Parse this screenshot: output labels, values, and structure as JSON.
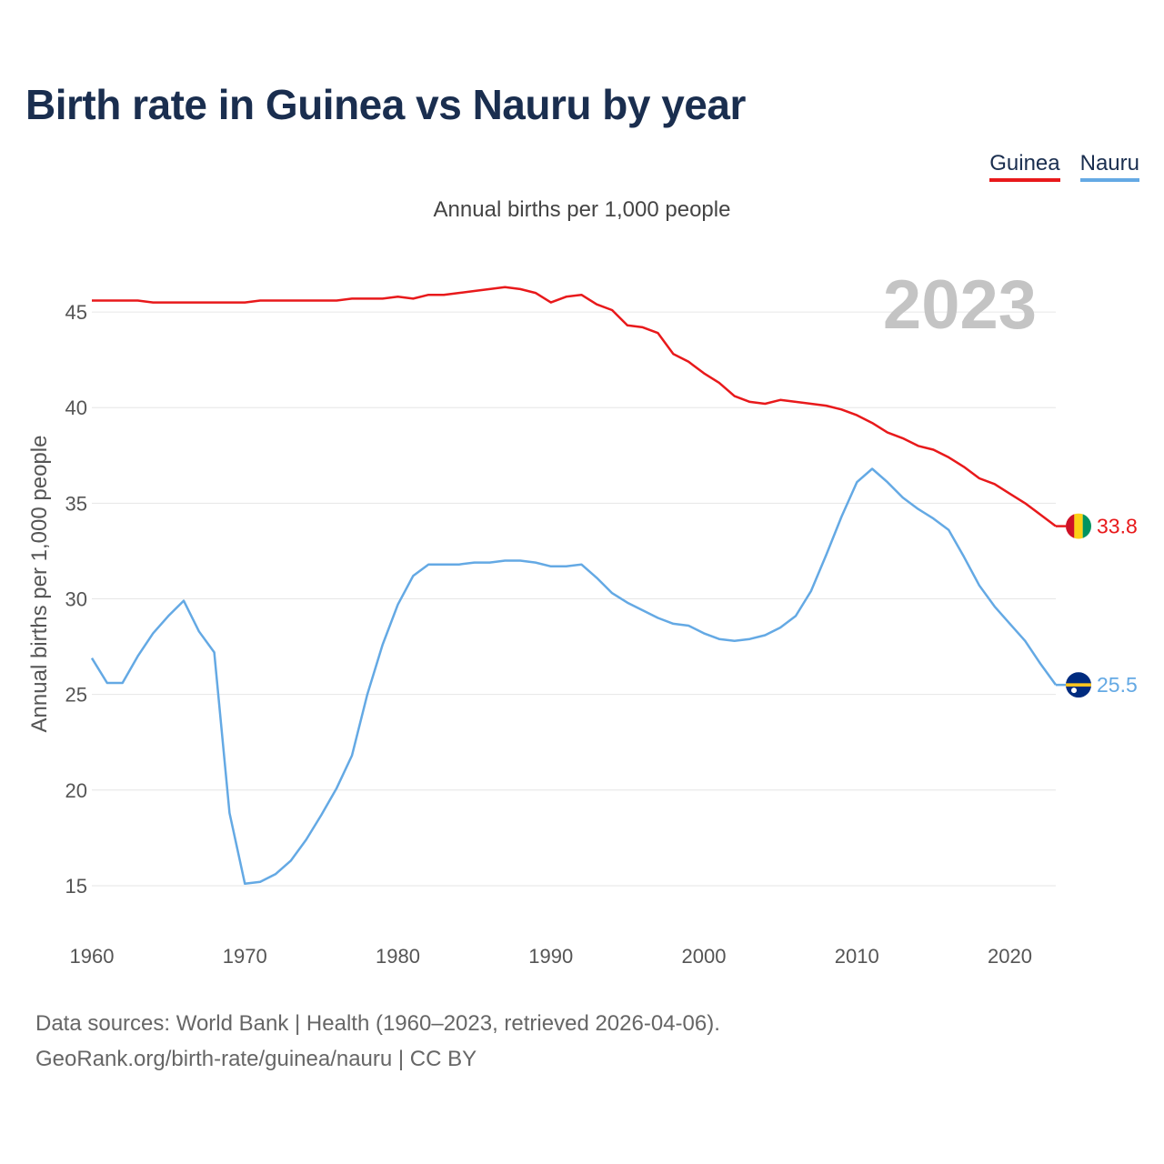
{
  "title": "Birth rate in Guinea vs Nauru by year",
  "subtitle": "Annual births per 1,000 people",
  "legend": {
    "guinea": "Guinea",
    "nauru": "Nauru"
  },
  "colors": {
    "guinea": "#e8191b",
    "nauru": "#64a9e4",
    "title": "#1a2e4f",
    "year_watermark": "#c4c4c4"
  },
  "footer": {
    "line1": "Data sources: World Bank | Health (1960–2023, retrieved 2026-04-06).",
    "line2": "GeoRank.org/birth-rate/guinea/nauru | CC BY"
  },
  "chart_data": {
    "type": "line",
    "title": "Birth rate in Guinea vs Nauru by year",
    "ylabel": "Annual births per 1,000 people",
    "xlabel": "",
    "year_label": "2023",
    "xlim": [
      1960,
      2023
    ],
    "ylim": [
      13,
      48
    ],
    "x_ticks": [
      1960,
      1970,
      1980,
      1990,
      2000,
      2010,
      2020
    ],
    "y_ticks": [
      15,
      20,
      25,
      30,
      35,
      40,
      45
    ],
    "grid": true,
    "x": [
      1960,
      1961,
      1962,
      1963,
      1964,
      1965,
      1966,
      1967,
      1968,
      1969,
      1970,
      1971,
      1972,
      1973,
      1974,
      1975,
      1976,
      1977,
      1978,
      1979,
      1980,
      1981,
      1982,
      1983,
      1984,
      1985,
      1986,
      1987,
      1988,
      1989,
      1990,
      1991,
      1992,
      1993,
      1994,
      1995,
      1996,
      1997,
      1998,
      1999,
      2000,
      2001,
      2002,
      2003,
      2004,
      2005,
      2006,
      2007,
      2008,
      2009,
      2010,
      2011,
      2012,
      2013,
      2014,
      2015,
      2016,
      2017,
      2018,
      2019,
      2020,
      2021,
      2022,
      2023
    ],
    "series": [
      {
        "name": "Guinea",
        "key": "guinea",
        "end_label": "33.8",
        "values": [
          45.6,
          45.6,
          45.6,
          45.6,
          45.5,
          45.5,
          45.5,
          45.5,
          45.5,
          45.5,
          45.5,
          45.6,
          45.6,
          45.6,
          45.6,
          45.6,
          45.6,
          45.7,
          45.7,
          45.7,
          45.8,
          45.7,
          45.9,
          45.9,
          46.0,
          46.1,
          46.2,
          46.3,
          46.2,
          46.0,
          45.5,
          45.8,
          45.9,
          45.4,
          45.1,
          44.3,
          44.2,
          43.9,
          42.8,
          42.4,
          41.8,
          41.3,
          40.6,
          40.3,
          40.2,
          40.4,
          40.3,
          40.2,
          40.1,
          39.9,
          39.6,
          39.2,
          38.7,
          38.4,
          38.0,
          37.8,
          37.4,
          36.9,
          36.3,
          36.0,
          35.5,
          35.0,
          34.4,
          33.8
        ]
      },
      {
        "name": "Nauru",
        "key": "nauru",
        "end_label": "25.5",
        "values": [
          26.9,
          25.6,
          25.6,
          27.0,
          28.2,
          29.1,
          29.9,
          28.3,
          27.2,
          18.8,
          15.1,
          15.2,
          15.6,
          16.3,
          17.4,
          18.7,
          20.1,
          21.8,
          25.0,
          27.6,
          29.7,
          31.2,
          31.8,
          31.8,
          31.8,
          31.9,
          31.9,
          32.0,
          32.0,
          31.9,
          31.7,
          31.7,
          31.8,
          31.1,
          30.3,
          29.8,
          29.4,
          29.0,
          28.7,
          28.6,
          28.2,
          27.9,
          27.8,
          27.9,
          28.1,
          28.5,
          29.1,
          30.4,
          32.3,
          34.3,
          36.1,
          36.8,
          36.1,
          35.3,
          34.7,
          34.2,
          33.6,
          32.2,
          30.7,
          29.6,
          28.7,
          27.8,
          26.6,
          25.5
        ]
      }
    ]
  }
}
